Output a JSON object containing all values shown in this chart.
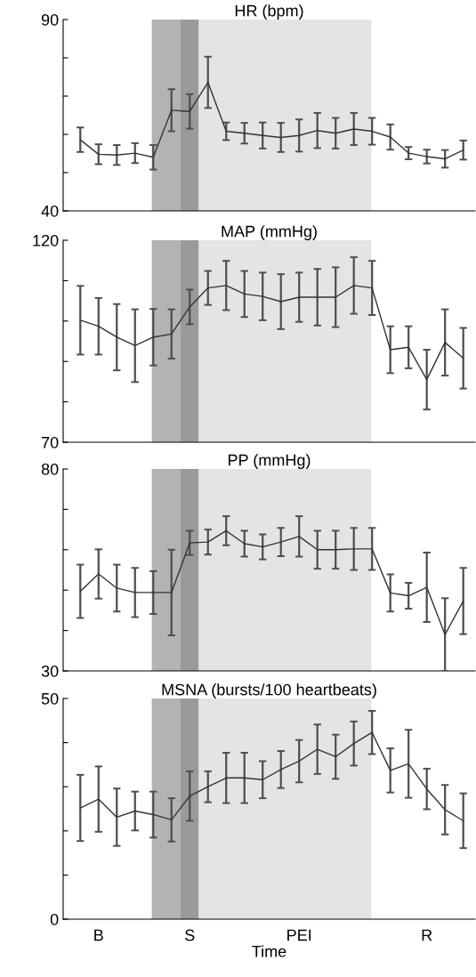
{
  "chart_data": [
    {
      "type": "line",
      "title": "HR (bpm)",
      "categories": [
        null,
        "B",
        null,
        null,
        null,
        null,
        "S",
        null,
        null,
        null,
        null,
        null,
        "PEI",
        null,
        null,
        null,
        null,
        null,
        null,
        "R",
        null,
        null
      ],
      "tick_labels": "y",
      "ylim": [
        40,
        90
      ],
      "yticks": [
        {
          "value": 40,
          "label": "40"
        },
        {
          "value": 50,
          "label": null
        },
        {
          "value": 60,
          "label": null
        },
        {
          "value": 70,
          "label": null
        },
        {
          "value": 80,
          "label": null
        },
        {
          "value": 90,
          "label": "90"
        }
      ],
      "series": [
        {
          "color": "#333333",
          "values": [
            58.6,
            54.8,
            54.6,
            55.1,
            54.0,
            66.3,
            66.0,
            73.6,
            60.8,
            60.3,
            59.7,
            59.2,
            59.7,
            61.0,
            60.3,
            61.4,
            60.8,
            59.3,
            55.1,
            54.2,
            53.6,
            55.9
          ],
          "errors": [
            3.2,
            2.6,
            2.6,
            2.6,
            3.2,
            5.5,
            4.5,
            6.7,
            2.3,
            2.7,
            3.4,
            3.8,
            4.2,
            4.6,
            4.0,
            4.2,
            3.5,
            3.3,
            1.6,
            1.8,
            2.3,
            2.5
          ]
        }
      ],
      "bands": [
        {
          "axis": "x",
          "from": "S",
          "to": "S",
          "color": "#9a9a9a"
        }
      ],
      "grid": false,
      "legend": false
    },
    {
      "type": "line",
      "title": "MAP (mmHg)",
      "categories": [
        null,
        "B",
        null,
        null,
        null,
        null,
        "S",
        null,
        null,
        null,
        null,
        null,
        "PEI",
        null,
        null,
        null,
        null,
        null,
        null,
        "R",
        null,
        null
      ],
      "tick_labels": "y",
      "ylim": [
        70,
        120
      ],
      "yticks": [
        {
          "value": 70,
          "label": "70"
        },
        {
          "value": 80,
          "label": null
        },
        {
          "value": 90,
          "label": null
        },
        {
          "value": 100,
          "label": null
        },
        {
          "value": 110,
          "label": null
        },
        {
          "value": 120,
          "label": "120"
        }
      ],
      "series": [
        {
          "color": "#333333",
          "values": [
            100.2,
            98.7,
            96.0,
            93.9,
            96.0,
            96.8,
            103.5,
            108.2,
            108.8,
            106.7,
            106.1,
            104.8,
            105.9,
            105.9,
            105.9,
            108.8,
            108.2,
            92.9,
            93.5,
            85.5,
            94.7,
            90.8
          ],
          "errors": [
            8.5,
            7,
            8.2,
            9,
            7,
            6.1,
            4.3,
            4.2,
            6.1,
            5.7,
            5.9,
            6.8,
            6.1,
            7,
            7.4,
            7,
            6.7,
            5.8,
            5.2,
            7.4,
            8.2,
            7.5
          ]
        }
      ],
      "bands": [
        {
          "axis": "x",
          "from": "S",
          "to": "S",
          "color": "#9a9a9a"
        }
      ],
      "grid": false,
      "legend": false
    },
    {
      "type": "line",
      "title": "PP (mmHg)",
      "categories": [
        null,
        "B",
        null,
        null,
        null,
        null,
        "S",
        null,
        null,
        null,
        null,
        null,
        "PEI",
        null,
        null,
        null,
        null,
        null,
        null,
        "R",
        null,
        null
      ],
      "tick_labels": "y",
      "ylim": [
        30,
        80
      ],
      "yticks": [
        {
          "value": 30,
          "label": "30"
        },
        {
          "value": 40,
          "label": null
        },
        {
          "value": 50,
          "label": null
        },
        {
          "value": 60,
          "label": null
        },
        {
          "value": 70,
          "label": null
        },
        {
          "value": 80,
          "label": "80"
        }
      ],
      "series": [
        {
          "color": "#333333",
          "values": [
            49.7,
            54.0,
            50.5,
            49.4,
            49.4,
            49.4,
            61.7,
            61.9,
            64.7,
            61.5,
            60.7,
            61.9,
            63.3,
            60.0,
            60.0,
            60.2,
            60.2,
            49.3,
            48.6,
            50.7,
            39.0,
            47.3
          ],
          "errors": [
            6.6,
            6.1,
            5.8,
            6.1,
            5.3,
            10.6,
            3,
            3.1,
            3.6,
            3.2,
            3.1,
            3.5,
            5,
            4.7,
            4.7,
            5.2,
            5.2,
            4.6,
            3.2,
            8.6,
            9,
            8.2
          ]
        }
      ],
      "bands": [
        {
          "axis": "x",
          "from": "S",
          "to": "S",
          "color": "#9a9a9a"
        }
      ],
      "grid": false,
      "legend": false
    },
    {
      "type": "line",
      "title": "MSNA (bursts/100 heartbeats)",
      "xlabel": "Time",
      "categories": [
        null,
        "B",
        null,
        null,
        null,
        null,
        "S",
        null,
        null,
        null,
        null,
        null,
        "PEI",
        null,
        null,
        null,
        null,
        null,
        null,
        "R",
        null,
        null
      ],
      "ylim": [
        0,
        50
      ],
      "yticks": [
        {
          "value": 0,
          "label": "0"
        },
        {
          "value": 10,
          "label": null
        },
        {
          "value": 20,
          "label": null
        },
        {
          "value": 30,
          "label": null
        },
        {
          "value": 40,
          "label": null
        },
        {
          "value": 50,
          "label": "50"
        }
      ],
      "series": [
        {
          "color": "#333333",
          "values": [
            25.2,
            27.2,
            23.1,
            24.5,
            23.7,
            22.5,
            27.9,
            30.0,
            32.0,
            32.0,
            31.6,
            33.9,
            35.8,
            38.5,
            36.8,
            39.8,
            42.3,
            33.7,
            35.2,
            29.5,
            24.8,
            22.3
          ],
          "errors": [
            7.5,
            7.4,
            6.5,
            4.4,
            5.2,
            4.9,
            5.6,
            3.5,
            5.7,
            5.7,
            4.2,
            4.2,
            4.8,
            5.6,
            5,
            5,
            4.9,
            5,
            7.7,
            4.6,
            5.6,
            6.2
          ]
        }
      ],
      "bands": [
        {
          "axis": "x",
          "from": "S",
          "to": "S",
          "color": "#9a9a9a"
        }
      ],
      "grid": false,
      "legend": false
    }
  ]
}
